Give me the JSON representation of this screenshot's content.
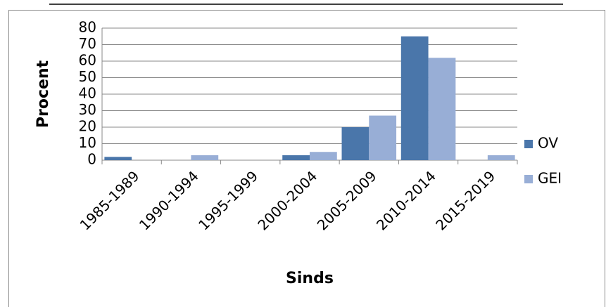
{
  "chart_data": {
    "type": "bar",
    "x_label": "Sinds",
    "y_label": "Procent",
    "categories": [
      "1985-1989",
      "1990-1994",
      "1995-1999",
      "2000-2004",
      "2005-2009",
      "2010-2014",
      "2015-2019"
    ],
    "series": [
      {
        "name": "OV",
        "color": "#4a76aa",
        "values": [
          2,
          0,
          0,
          3,
          20,
          75,
          0
        ]
      },
      {
        "name": "GEI",
        "color": "#98aed6",
        "values": [
          0,
          3,
          0,
          5,
          27,
          62,
          3
        ]
      }
    ],
    "ylim": [
      0,
      80
    ],
    "yticks": [
      0,
      10,
      20,
      30,
      40,
      50,
      60,
      70,
      80
    ],
    "grid": true,
    "legend": "right"
  }
}
